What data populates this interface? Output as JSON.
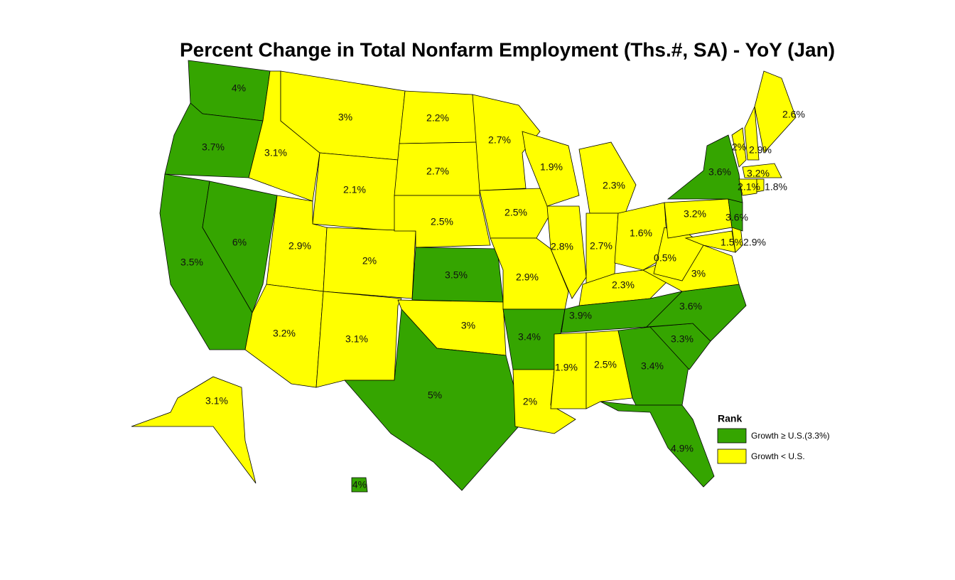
{
  "title": "Percent Change in Total Nonfarm Employment (Ths.#, SA) - YoY (Jan)",
  "legend": {
    "title": "Rank",
    "items": [
      {
        "label": "Growth ≥ U.S.(3.3%)",
        "color": "#35a500"
      },
      {
        "label": "Growth < U.S.",
        "color": "#ffff00"
      }
    ]
  },
  "regions": [
    {
      "label": "4%",
      "color": "#35a500"
    },
    {
      "label": "3.7%",
      "color": "#35a500"
    },
    {
      "label": "3.5%",
      "color": "#35a500"
    },
    {
      "label": "6%",
      "color": "#35a500"
    },
    {
      "label": "3.1%",
      "color": "#ffff00"
    },
    {
      "label": "3%",
      "color": "#ffff00"
    },
    {
      "label": "2.1%",
      "color": "#ffff00"
    },
    {
      "label": "2.9%",
      "color": "#ffff00"
    },
    {
      "label": "2%",
      "color": "#ffff00"
    },
    {
      "label": "3.2%",
      "color": "#ffff00"
    },
    {
      "label": "3.1%",
      "color": "#ffff00"
    },
    {
      "label": "2.2%",
      "color": "#ffff00"
    },
    {
      "label": "2.7%",
      "color": "#ffff00"
    },
    {
      "label": "2.5%",
      "color": "#ffff00"
    },
    {
      "label": "3.5%",
      "color": "#35a500"
    },
    {
      "label": "3%",
      "color": "#ffff00"
    },
    {
      "label": "5%",
      "color": "#35a500"
    },
    {
      "label": "2.7%",
      "color": "#ffff00"
    },
    {
      "label": "2.5%",
      "color": "#ffff00"
    },
    {
      "label": "2.9%",
      "color": "#ffff00"
    },
    {
      "label": "3.4%",
      "color": "#35a500"
    },
    {
      "label": "2%",
      "color": "#ffff00"
    },
    {
      "label": "1.9%",
      "color": "#ffff00"
    },
    {
      "label": "2.8%",
      "color": "#ffff00"
    },
    {
      "label": "2.3%",
      "color": "#ffff00"
    },
    {
      "label": "2.7%",
      "color": "#ffff00"
    },
    {
      "label": "1.6%",
      "color": "#ffff00"
    },
    {
      "label": "2.3%",
      "color": "#ffff00"
    },
    {
      "label": "3.9%",
      "color": "#35a500"
    },
    {
      "label": "1.9%",
      "color": "#ffff00"
    },
    {
      "label": "2.5%",
      "color": "#ffff00"
    },
    {
      "label": "3.4%",
      "color": "#35a500"
    },
    {
      "label": "4.9%",
      "color": "#35a500"
    },
    {
      "label": "3.3%",
      "color": "#35a500"
    },
    {
      "label": "3.6%",
      "color": "#35a500"
    },
    {
      "label": "3%",
      "color": "#ffff00"
    },
    {
      "label": "0.5%",
      "color": "#ffff00"
    },
    {
      "label": "3.2%",
      "color": "#ffff00"
    },
    {
      "label": "1.5%",
      "color": "#ffff00"
    },
    {
      "label": "2.9%",
      "color": "#ffff00"
    },
    {
      "label": "3.6%",
      "color": "#35a500"
    },
    {
      "label": "3.6%",
      "color": "#35a500"
    },
    {
      "label": "2%",
      "color": "#ffff00"
    },
    {
      "label": "2.9%",
      "color": "#ffff00"
    },
    {
      "label": "2.6%",
      "color": "#ffff00"
    },
    {
      "label": "3.2%",
      "color": "#ffff00"
    },
    {
      "label": "2.1%",
      "color": "#ffff00"
    },
    {
      "label": "1.8%",
      "color": "#ffff00"
    },
    {
      "label": "3.1%",
      "color": "#ffff00"
    },
    {
      "label": "4%",
      "color": "#35a500"
    }
  ]
}
